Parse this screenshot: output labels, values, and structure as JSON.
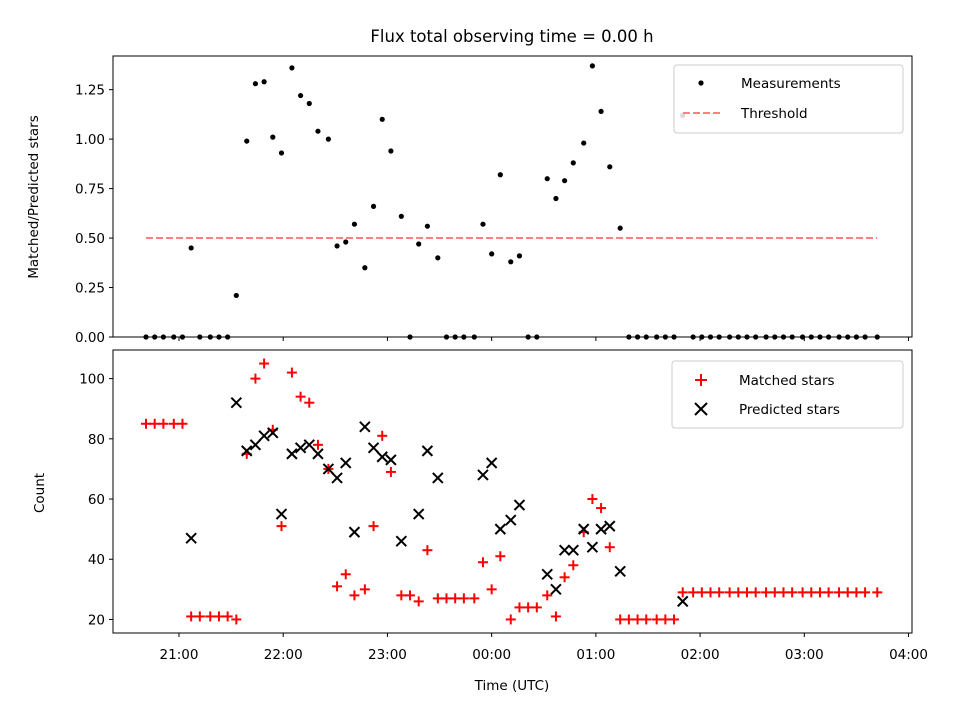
{
  "chart_data": [
    {
      "type": "scatter",
      "title": "Flux total observing time = 0.00 h",
      "ylabel": "Matched/Predicted stars",
      "xlabel": "",
      "ylim": [
        0,
        1.42
      ],
      "yticks": [
        "0.00",
        "0.25",
        "0.50",
        "0.75",
        "1.00",
        "1.25"
      ],
      "legend": {
        "placement": "top-right",
        "entries": [
          "Measurements",
          "Threshold"
        ]
      },
      "threshold": {
        "y": 0.5,
        "x_start": "20:41",
        "x_end": "03:42",
        "color": "#ff8080",
        "style": "dashed"
      },
      "series": [
        {
          "name": "Measurements",
          "color": "#000000",
          "marker": "dot",
          "points": [
            [
              "20:41",
              0.0
            ],
            [
              "20:46",
              0.0
            ],
            [
              "20:51",
              0.0
            ],
            [
              "20:57",
              0.0
            ],
            [
              "21:02",
              0.0
            ],
            [
              "21:07",
              0.45
            ],
            [
              "21:12",
              0.0
            ],
            [
              "21:18",
              0.0
            ],
            [
              "21:23",
              0.0
            ],
            [
              "21:28",
              0.0
            ],
            [
              "21:33",
              0.21
            ],
            [
              "21:39",
              0.99
            ],
            [
              "21:44",
              1.28
            ],
            [
              "21:49",
              1.29
            ],
            [
              "21:54",
              1.01
            ],
            [
              "21:59",
              0.93
            ],
            [
              "22:05",
              1.36
            ],
            [
              "22:10",
              1.22
            ],
            [
              "22:15",
              1.18
            ],
            [
              "22:20",
              1.04
            ],
            [
              "22:26",
              1.0
            ],
            [
              "22:31",
              0.46
            ],
            [
              "22:36",
              0.48
            ],
            [
              "22:41",
              0.57
            ],
            [
              "22:47",
              0.35
            ],
            [
              "22:52",
              0.66
            ],
            [
              "22:57",
              1.1
            ],
            [
              "23:02",
              0.94
            ],
            [
              "23:08",
              0.61
            ],
            [
              "23:13",
              0.0
            ],
            [
              "23:18",
              0.47
            ],
            [
              "23:23",
              0.56
            ],
            [
              "23:29",
              0.4
            ],
            [
              "23:34",
              0.0
            ],
            [
              "23:39",
              0.0
            ],
            [
              "23:44",
              0.0
            ],
            [
              "23:50",
              0.0
            ],
            [
              "23:55",
              0.57
            ],
            [
              "00:00",
              0.42
            ],
            [
              "00:05",
              0.82
            ],
            [
              "00:11",
              0.38
            ],
            [
              "00:16",
              0.41
            ],
            [
              "00:21",
              0.0
            ],
            [
              "00:26",
              0.0
            ],
            [
              "00:32",
              0.8
            ],
            [
              "00:37",
              0.7
            ],
            [
              "00:42",
              0.79
            ],
            [
              "00:47",
              0.88
            ],
            [
              "00:53",
              0.98
            ],
            [
              "00:58",
              1.37
            ],
            [
              "01:03",
              1.14
            ],
            [
              "01:08",
              0.86
            ],
            [
              "01:14",
              0.55
            ],
            [
              "01:19",
              0.0
            ],
            [
              "01:24",
              0.0
            ],
            [
              "01:29",
              0.0
            ],
            [
              "01:35",
              0.0
            ],
            [
              "01:40",
              0.0
            ],
            [
              "01:45",
              0.0
            ],
            [
              "01:50",
              1.12
            ],
            [
              "01:56",
              0.0
            ],
            [
              "02:01",
              0.0
            ],
            [
              "02:06",
              0.0
            ],
            [
              "02:11",
              0.0
            ],
            [
              "02:17",
              0.0
            ],
            [
              "02:22",
              0.0
            ],
            [
              "02:27",
              0.0
            ],
            [
              "02:32",
              0.0
            ],
            [
              "02:38",
              0.0
            ],
            [
              "02:43",
              0.0
            ],
            [
              "02:48",
              0.0
            ],
            [
              "02:53",
              0.0
            ],
            [
              "02:59",
              0.0
            ],
            [
              "03:04",
              0.0
            ],
            [
              "03:09",
              0.0
            ],
            [
              "03:14",
              0.0
            ],
            [
              "03:20",
              0.0
            ],
            [
              "03:25",
              0.0
            ],
            [
              "03:30",
              0.0
            ],
            [
              "03:35",
              0.0
            ],
            [
              "03:42",
              0.0
            ]
          ]
        }
      ]
    },
    {
      "type": "scatter",
      "title": "",
      "xlabel": "Time (UTC)",
      "ylabel": "Count",
      "ylim": [
        15.5,
        109.5
      ],
      "yticks": [
        "20",
        "40",
        "60",
        "80",
        "100"
      ],
      "xticks": [
        "21:00",
        "22:00",
        "23:00",
        "00:00",
        "01:00",
        "02:00",
        "03:00",
        "04:00"
      ],
      "legend": {
        "placement": "top-right",
        "entries": [
          "Matched stars",
          "Predicted stars"
        ]
      },
      "series": [
        {
          "name": "Matched stars",
          "color": "#ff0000",
          "marker": "plus",
          "points": [
            [
              "20:41",
              85
            ],
            [
              "20:46",
              85
            ],
            [
              "20:51",
              85
            ],
            [
              "20:57",
              85
            ],
            [
              "21:02",
              85
            ],
            [
              "21:07",
              21
            ],
            [
              "21:12",
              21
            ],
            [
              "21:18",
              21
            ],
            [
              "21:23",
              21
            ],
            [
              "21:28",
              21
            ],
            [
              "21:33",
              20
            ],
            [
              "21:39",
              75
            ],
            [
              "21:44",
              100
            ],
            [
              "21:49",
              105
            ],
            [
              "21:54",
              83
            ],
            [
              "21:59",
              51
            ],
            [
              "22:05",
              102
            ],
            [
              "22:10",
              94
            ],
            [
              "22:15",
              92
            ],
            [
              "22:20",
              78
            ],
            [
              "22:26",
              70
            ],
            [
              "22:31",
              31
            ],
            [
              "22:36",
              35
            ],
            [
              "22:41",
              28
            ],
            [
              "22:47",
              30
            ],
            [
              "22:52",
              51
            ],
            [
              "22:57",
              81
            ],
            [
              "23:02",
              69
            ],
            [
              "23:08",
              28
            ],
            [
              "23:13",
              28
            ],
            [
              "23:18",
              26
            ],
            [
              "23:23",
              43
            ],
            [
              "23:29",
              27
            ],
            [
              "23:34",
              27
            ],
            [
              "23:39",
              27
            ],
            [
              "23:44",
              27
            ],
            [
              "23:50",
              27
            ],
            [
              "23:55",
              39
            ],
            [
              "00:00",
              30
            ],
            [
              "00:05",
              41
            ],
            [
              "00:11",
              20
            ],
            [
              "00:16",
              24
            ],
            [
              "00:21",
              24
            ],
            [
              "00:26",
              24
            ],
            [
              "00:32",
              28
            ],
            [
              "00:37",
              21
            ],
            [
              "00:42",
              34
            ],
            [
              "00:47",
              38
            ],
            [
              "00:53",
              49
            ],
            [
              "00:58",
              60
            ],
            [
              "01:03",
              57
            ],
            [
              "01:08",
              44
            ],
            [
              "01:14",
              20
            ],
            [
              "01:19",
              20
            ],
            [
              "01:24",
              20
            ],
            [
              "01:29",
              20
            ],
            [
              "01:35",
              20
            ],
            [
              "01:40",
              20
            ],
            [
              "01:45",
              20
            ],
            [
              "01:50",
              29
            ],
            [
              "01:56",
              29
            ],
            [
              "02:01",
              29
            ],
            [
              "02:06",
              29
            ],
            [
              "02:11",
              29
            ],
            [
              "02:17",
              29
            ],
            [
              "02:22",
              29
            ],
            [
              "02:27",
              29
            ],
            [
              "02:32",
              29
            ],
            [
              "02:38",
              29
            ],
            [
              "02:43",
              29
            ],
            [
              "02:48",
              29
            ],
            [
              "02:53",
              29
            ],
            [
              "02:59",
              29
            ],
            [
              "03:04",
              29
            ],
            [
              "03:09",
              29
            ],
            [
              "03:14",
              29
            ],
            [
              "03:20",
              29
            ],
            [
              "03:25",
              29
            ],
            [
              "03:30",
              29
            ],
            [
              "03:35",
              29
            ],
            [
              "03:42",
              29
            ]
          ]
        },
        {
          "name": "Predicted stars",
          "color": "#000000",
          "marker": "x",
          "points": [
            [
              "21:07",
              47
            ],
            [
              "21:33",
              92
            ],
            [
              "21:39",
              76
            ],
            [
              "21:44",
              78
            ],
            [
              "21:49",
              81
            ],
            [
              "21:54",
              82
            ],
            [
              "21:59",
              55
            ],
            [
              "22:05",
              75
            ],
            [
              "22:10",
              77
            ],
            [
              "22:15",
              78
            ],
            [
              "22:20",
              75
            ],
            [
              "22:26",
              70
            ],
            [
              "22:31",
              67
            ],
            [
              "22:36",
              72
            ],
            [
              "22:41",
              49
            ],
            [
              "22:47",
              84
            ],
            [
              "22:52",
              77
            ],
            [
              "22:57",
              74
            ],
            [
              "23:02",
              73
            ],
            [
              "23:08",
              46
            ],
            [
              "23:18",
              55
            ],
            [
              "23:23",
              76
            ],
            [
              "23:29",
              67
            ],
            [
              "23:55",
              68
            ],
            [
              "00:00",
              72
            ],
            [
              "00:05",
              50
            ],
            [
              "00:11",
              53
            ],
            [
              "00:16",
              58
            ],
            [
              "00:32",
              35
            ],
            [
              "00:37",
              30
            ],
            [
              "00:42",
              43
            ],
            [
              "00:47",
              43
            ],
            [
              "00:53",
              50
            ],
            [
              "00:58",
              44
            ],
            [
              "01:03",
              50
            ],
            [
              "01:08",
              51
            ],
            [
              "01:14",
              36
            ],
            [
              "01:50",
              26
            ]
          ]
        }
      ]
    }
  ]
}
